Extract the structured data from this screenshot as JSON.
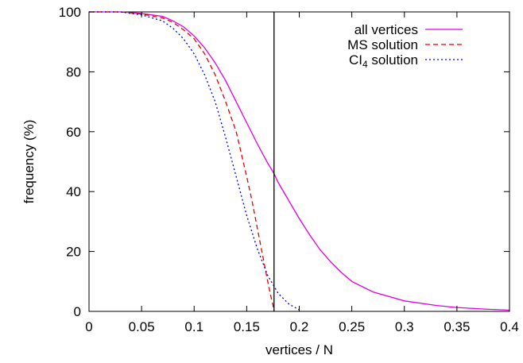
{
  "chart_data": {
    "type": "line",
    "xlabel": "vertices / N",
    "ylabel": "frequency (%)",
    "xlim": [
      0,
      0.4
    ],
    "ylim": [
      0,
      100
    ],
    "xticks": [
      "0",
      "0.05",
      "0.1",
      "0.15",
      "0.2",
      "0.25",
      "0.3",
      "0.35",
      "0.4"
    ],
    "yticks": [
      "0",
      "20",
      "40",
      "60",
      "80",
      "100"
    ],
    "grid": false,
    "legend_position": "top-right",
    "vertical_line_x": 0.176,
    "series": [
      {
        "name": "all vertices",
        "color": "#e000e0",
        "style": "solid",
        "x": [
          0,
          0.03,
          0.05,
          0.07,
          0.08,
          0.09,
          0.1,
          0.11,
          0.12,
          0.13,
          0.14,
          0.15,
          0.16,
          0.17,
          0.176,
          0.18,
          0.19,
          0.2,
          0.21,
          0.22,
          0.23,
          0.24,
          0.25,
          0.27,
          0.3,
          0.33,
          0.35,
          0.38,
          0.4
        ],
        "y": [
          100,
          100,
          99.5,
          98.5,
          97,
          95,
          92,
          88,
          83,
          77,
          70,
          63,
          56,
          49.5,
          46,
          43,
          37,
          31,
          25.5,
          20.5,
          16.5,
          13,
          10,
          6.5,
          3.5,
          2,
          1.3,
          0.7,
          0.4
        ]
      },
      {
        "name": "MS solution",
        "color": "#e00000",
        "style": "dashed",
        "x": [
          0,
          0.03,
          0.05,
          0.07,
          0.08,
          0.09,
          0.1,
          0.11,
          0.12,
          0.13,
          0.14,
          0.15,
          0.155,
          0.16,
          0.165,
          0.17,
          0.173,
          0.175,
          0.176
        ],
        "y": [
          100,
          100,
          99.3,
          98,
          96.5,
          94,
          91,
          86,
          79,
          70,
          60,
          45,
          37,
          28,
          19,
          10,
          5,
          2,
          0
        ]
      },
      {
        "name": "CI_4 solution",
        "color": "#0000e0",
        "style": "dotted",
        "x": [
          0,
          0.03,
          0.05,
          0.07,
          0.08,
          0.09,
          0.1,
          0.11,
          0.12,
          0.13,
          0.14,
          0.15,
          0.16,
          0.17,
          0.18,
          0.19,
          0.2,
          0.202
        ],
        "y": [
          100,
          100,
          99,
          97,
          94.5,
          91,
          86,
          79,
          70,
          58,
          45,
          32,
          21,
          12,
          6,
          2.5,
          0.5,
          0
        ]
      }
    ]
  },
  "legend": {
    "entries": [
      {
        "main": "all vertices",
        "sub": "",
        "suffix": ""
      },
      {
        "main": "MS solution",
        "sub": "",
        "suffix": ""
      },
      {
        "main": "CI",
        "sub": "4",
        "suffix": " solution"
      }
    ]
  }
}
